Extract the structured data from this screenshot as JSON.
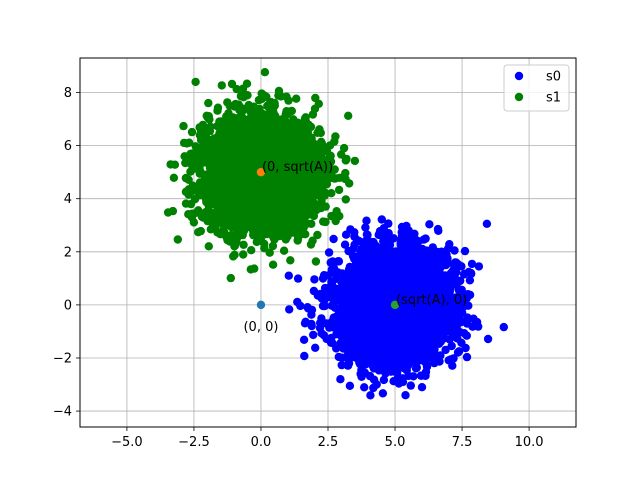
{
  "chart_data": {
    "type": "scatter",
    "title": "",
    "xlabel": "",
    "ylabel": "",
    "xlim": [
      -6.75,
      11.75
    ],
    "ylim": [
      -4.6,
      9.3
    ],
    "xticks": [
      -5.0,
      -2.5,
      0.0,
      2.5,
      5.0,
      7.5,
      10.0
    ],
    "xtick_labels": [
      "−5.0",
      "−2.5",
      "0.0",
      "2.5",
      "5.0",
      "7.5",
      "10.0"
    ],
    "yticks": [
      -4,
      -2,
      0,
      2,
      4,
      6,
      8
    ],
    "ytick_labels": [
      "−4",
      "−2",
      "0",
      "2",
      "4",
      "6",
      "8"
    ],
    "grid": true,
    "legend_position": "top-right",
    "series": [
      {
        "name": "s0",
        "color": "#0000ff",
        "distribution": "gaussian",
        "center": [
          5.0,
          0.0
        ],
        "std": 1.0,
        "count": 5000
      },
      {
        "name": "s1",
        "color": "#008000",
        "distribution": "gaussian",
        "center": [
          0.0,
          5.0
        ],
        "std": 1.0,
        "count": 5000
      }
    ],
    "markers": [
      {
        "x": 0.0,
        "y": 0.0,
        "color": "#1f77b4"
      },
      {
        "x": 0.0,
        "y": 5.0,
        "color": "#ff7f0e"
      },
      {
        "x": 5.0,
        "y": 0.0,
        "color": "#2ca02c"
      }
    ],
    "annotations": [
      {
        "text": "(0, 0)",
        "x": 0.0,
        "y": 0.0
      },
      {
        "text": "(0, sqrt(A))",
        "x": 0.0,
        "y": 5.0
      },
      {
        "text": "(sqrt(A), 0)",
        "x": 5.0,
        "y": 0.0
      }
    ]
  }
}
